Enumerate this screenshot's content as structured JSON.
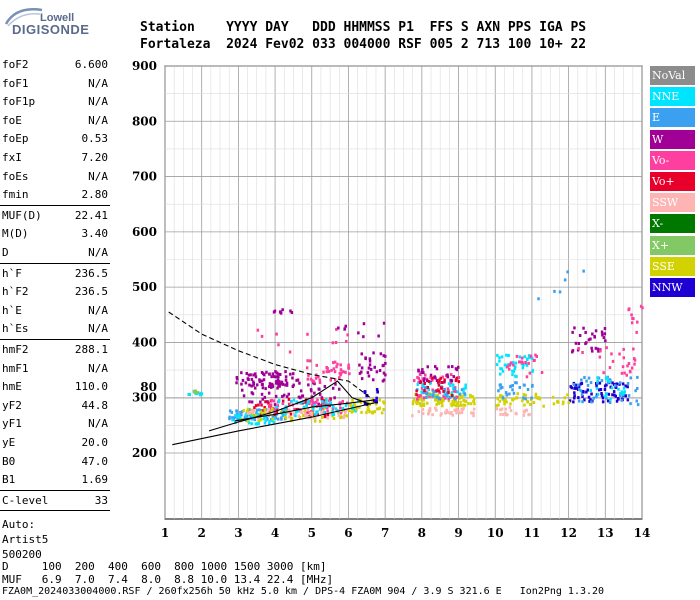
{
  "logo": {
    "top": "Lowell",
    "bottom": "DIGISONDE"
  },
  "header": {
    "line1": "Station    YYYY DAY   DDD HHMMSS P1  FFS S AXN PPS IGA PS",
    "line2": "Fortaleza  2024 Fev02 033 004000 RSF 005 2 713 100 10+ 22"
  },
  "params": {
    "group1": [
      {
        "label": "foF2",
        "value": "6.600"
      },
      {
        "label": "foF1",
        "value": "N/A"
      },
      {
        "label": "foF1p",
        "value": "N/A"
      },
      {
        "label": "foE",
        "value": "N/A"
      },
      {
        "label": "foEp",
        "value": "0.53"
      },
      {
        "label": "fxI",
        "value": "7.20"
      },
      {
        "label": "foEs",
        "value": "N/A"
      },
      {
        "label": "fmin",
        "value": "2.80"
      }
    ],
    "group2": [
      {
        "label": "MUF(D)",
        "value": "22.41"
      },
      {
        "label": "M(D)",
        "value": "3.40"
      },
      {
        "label": "D",
        "value": "N/A"
      }
    ],
    "group3": [
      {
        "label": "h`F",
        "value": "236.5"
      },
      {
        "label": "h`F2",
        "value": "236.5"
      },
      {
        "label": "h`E",
        "value": "N/A"
      },
      {
        "label": "h`Es",
        "value": "N/A"
      }
    ],
    "group4": [
      {
        "label": "hmF2",
        "value": "288.1"
      },
      {
        "label": "hmF1",
        "value": "N/A"
      },
      {
        "label": "hmE",
        "value": "110.0"
      },
      {
        "label": "yF2",
        "value": "44.8"
      },
      {
        "label": "yF1",
        "value": "N/A"
      },
      {
        "label": "yE",
        "value": "20.0"
      },
      {
        "label": "B0",
        "value": "47.0"
      },
      {
        "label": "B1",
        "value": "1.69"
      }
    ],
    "group5": [
      {
        "label": "C-level",
        "value": "33"
      }
    ],
    "auto_label": "Auto:",
    "artist": "Artist5",
    "artist_version": "500200"
  },
  "legend": [
    {
      "label": "NoVal",
      "color": "#8c8c8c"
    },
    {
      "label": "NNE",
      "color": "#00e5ff"
    },
    {
      "label": "E",
      "color": "#3ca0f0"
    },
    {
      "label": "W",
      "color": "#a00096"
    },
    {
      "label": "Vo-",
      "color": "#ff3fa0"
    },
    {
      "label": "Vo+",
      "color": "#e8002a"
    },
    {
      "label": "SSW",
      "color": "#ffb4b4"
    },
    {
      "label": "X-",
      "color": "#007800"
    },
    {
      "label": "X+",
      "color": "#82c864"
    },
    {
      "label": "SSE",
      "color": "#d2d200"
    },
    {
      "label": "NNW",
      "color": "#1e00d2"
    }
  ],
  "footer": {
    "line1": "D     100  200  400  600  800 1000 1500 3000 [km]",
    "line2": "MUF   6.9  7.0  7.4  8.0  8.8 10.0 13.4 22.4 [MHz]",
    "line3": "FZA0M_2024033004000.RSF / 260fx256h 50 kHz 5.0 km / DPS-4 FZA0M 904 / 3.9 S 321.6 E   Ion2Png 1.3.20"
  },
  "chart_data": {
    "type": "scatter",
    "title": "",
    "xlabel": "",
    "ylabel": "",
    "xlim": [
      1,
      14
    ],
    "ylim": [
      80,
      900
    ],
    "x_ticks": [
      1,
      2,
      3,
      4,
      5,
      6,
      7,
      8,
      9,
      10,
      11,
      12,
      13,
      14
    ],
    "y_ticks": [
      80,
      200,
      300,
      400,
      500,
      600,
      700,
      800,
      900
    ],
    "grid": true,
    "legend_position": "right",
    "clusters": [
      {
        "name": "W",
        "color": "#a00096",
        "x": [
          2.9,
          4.6
        ],
        "y": [
          320,
          350
        ],
        "n": 70
      },
      {
        "name": "W",
        "color": "#a00096",
        "x": [
          3.0,
          5.8
        ],
        "y": [
          290,
          330
        ],
        "n": 60
      },
      {
        "name": "Vo-",
        "color": "#ff3fa0",
        "x": [
          4.8,
          6.0
        ],
        "y": [
          330,
          370
        ],
        "n": 40
      },
      {
        "name": "E",
        "color": "#3ca0f0",
        "x": [
          2.7,
          4.3
        ],
        "y": [
          262,
          282
        ],
        "n": 60
      },
      {
        "name": "NNE",
        "color": "#00e5ff",
        "x": [
          2.8,
          4.0
        ],
        "y": [
          255,
          275
        ],
        "n": 40
      },
      {
        "name": "Vo+",
        "color": "#e8002a",
        "x": [
          3.2,
          5.5
        ],
        "y": [
          268,
          300
        ],
        "n": 60
      },
      {
        "name": "Vo-",
        "color": "#ff3fa0",
        "x": [
          3.8,
          6.0
        ],
        "y": [
          275,
          300
        ],
        "n": 60
      },
      {
        "name": "SSE",
        "color": "#d2d200",
        "x": [
          3.0,
          6.0
        ],
        "y": [
          260,
          285
        ],
        "n": 60
      },
      {
        "name": "SSW",
        "color": "#ffb4b4",
        "x": [
          3.2,
          6.0
        ],
        "y": [
          265,
          282
        ],
        "n": 40
      },
      {
        "name": "NNE",
        "color": "#00e5ff",
        "x": [
          4.0,
          6.3
        ],
        "y": [
          270,
          300
        ],
        "n": 50
      },
      {
        "name": "W",
        "color": "#a00096",
        "x": [
          6.2,
          7.0
        ],
        "y": [
          330,
          390
        ],
        "n": 30
      },
      {
        "name": "SSE",
        "color": "#d2d200",
        "x": [
          6.0,
          7.0
        ],
        "y": [
          275,
          300
        ],
        "n": 40
      },
      {
        "name": "NNW",
        "color": "#1e00d2",
        "x": [
          6.4,
          6.8
        ],
        "y": [
          290,
          320
        ],
        "n": 15
      },
      {
        "name": "SSE",
        "color": "#d2d200",
        "x": [
          7.7,
          9.4
        ],
        "y": [
          288,
          310
        ],
        "n": 90
      },
      {
        "name": "SSW",
        "color": "#ffb4b4",
        "x": [
          7.7,
          9.4
        ],
        "y": [
          270,
          285
        ],
        "n": 40
      },
      {
        "name": "Vo-",
        "color": "#ff3fa0",
        "x": [
          7.7,
          9.0
        ],
        "y": [
          300,
          345
        ],
        "n": 50
      },
      {
        "name": "W",
        "color": "#a00096",
        "x": [
          7.8,
          9.0
        ],
        "y": [
          330,
          360
        ],
        "n": 30
      },
      {
        "name": "NNE",
        "color": "#00e5ff",
        "x": [
          7.8,
          9.2
        ],
        "y": [
          305,
          330
        ],
        "n": 30
      },
      {
        "name": "E",
        "color": "#3ca0f0",
        "x": [
          8.0,
          9.2
        ],
        "y": [
          300,
          320
        ],
        "n": 25
      },
      {
        "name": "Vo+",
        "color": "#e8002a",
        "x": [
          7.8,
          9.0
        ],
        "y": [
          305,
          340
        ],
        "n": 25
      },
      {
        "name": "NNE",
        "color": "#00e5ff",
        "x": [
          10.0,
          11.0
        ],
        "y": [
          340,
          385
        ],
        "n": 40
      },
      {
        "name": "SSE",
        "color": "#d2d200",
        "x": [
          10.0,
          11.3
        ],
        "y": [
          285,
          310
        ],
        "n": 40
      },
      {
        "name": "SSW",
        "color": "#ffb4b4",
        "x": [
          10.0,
          11.0
        ],
        "y": [
          270,
          290
        ],
        "n": 20
      },
      {
        "name": "E",
        "color": "#3ca0f0",
        "x": [
          10.0,
          11.0
        ],
        "y": [
          300,
          330
        ],
        "n": 25
      },
      {
        "name": "Vo-",
        "color": "#ff3fa0",
        "x": [
          10.3,
          11.3
        ],
        "y": [
          340,
          380
        ],
        "n": 20
      },
      {
        "name": "NNW",
        "color": "#1e00d2",
        "x": [
          12.0,
          13.6
        ],
        "y": [
          295,
          330
        ],
        "n": 70
      },
      {
        "name": "W",
        "color": "#a00096",
        "x": [
          12.0,
          13.0
        ],
        "y": [
          385,
          430
        ],
        "n": 30
      },
      {
        "name": "E",
        "color": "#3ca0f0",
        "x": [
          12.1,
          13.9
        ],
        "y": [
          290,
          340
        ],
        "n": 40
      },
      {
        "name": "NNE",
        "color": "#00e5ff",
        "x": [
          12.5,
          13.5
        ],
        "y": [
          300,
          340
        ],
        "n": 20
      },
      {
        "name": "Vo-",
        "color": "#ff3fa0",
        "x": [
          12.2,
          13.8
        ],
        "y": [
          340,
          400
        ],
        "n": 25
      },
      {
        "name": "SSE",
        "color": "#d2d200",
        "x": [
          11.5,
          12.0
        ],
        "y": [
          290,
          310
        ],
        "n": 10
      },
      {
        "name": "NNE",
        "color": "#00e5ff",
        "x": [
          1.6,
          2.0
        ],
        "y": [
          86,
          92
        ],
        "n": 10
      },
      {
        "name": "X+",
        "color": "#82c864",
        "x": [
          1.6,
          1.9
        ],
        "y": [
          84,
          88
        ],
        "n": 5
      },
      {
        "name": "W",
        "color": "#a00096",
        "x": [
          3.9,
          4.5
        ],
        "y": [
          455,
          462
        ],
        "n": 8
      },
      {
        "name": "Vo-",
        "color": "#ff3fa0",
        "x": [
          3.4,
          6.0
        ],
        "y": [
          375,
          430
        ],
        "n": 12
      },
      {
        "name": "W",
        "color": "#a00096",
        "x": [
          5.5,
          7.0
        ],
        "y": [
          410,
          440
        ],
        "n": 8
      },
      {
        "name": "E",
        "color": "#3ca0f0",
        "x": [
          11.0,
          13.0
        ],
        "y": [
          470,
          560
        ],
        "n": 6
      },
      {
        "name": "Vo-",
        "color": "#ff3fa0",
        "x": [
          13.5,
          14.0
        ],
        "y": [
          420,
          470
        ],
        "n": 10
      }
    ],
    "profile_solid": [
      [
        2.2,
        240
      ],
      [
        3.0,
        256
      ],
      [
        4.0,
        275
      ],
      [
        5.0,
        300
      ],
      [
        5.7,
        330
      ],
      [
        6.1,
        300
      ],
      [
        6.6,
        288
      ]
    ],
    "profile_solid_2": [
      [
        2.9,
        258
      ],
      [
        4.0,
        270
      ],
      [
        5.0,
        283
      ],
      [
        6.0,
        290
      ],
      [
        6.7,
        296
      ]
    ],
    "lower_line": [
      [
        1.2,
        215
      ],
      [
        3.0,
        240
      ],
      [
        5.0,
        265
      ],
      [
        6.8,
        292
      ]
    ],
    "dashed_curve": [
      [
        1.1,
        455
      ],
      [
        2.0,
        415
      ],
      [
        3.0,
        385
      ],
      [
        4.0,
        360
      ],
      [
        5.0,
        342
      ],
      [
        5.5,
        336
      ],
      [
        6.0,
        330
      ],
      [
        6.3,
        315
      ],
      [
        6.6,
        300
      ]
    ]
  }
}
